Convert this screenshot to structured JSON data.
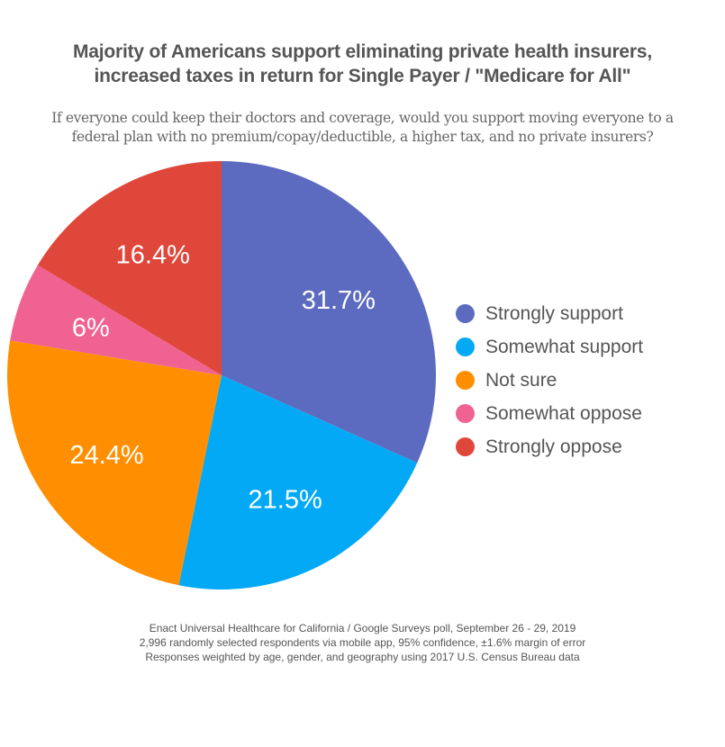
{
  "chart_data": {
    "type": "pie",
    "title": "Majority of Americans support eliminating private health insurers,\nincreased taxes in return for Single Payer / \"Medicare for All\"",
    "subtitle": "If everyone could keep their doctors and coverage, would you support moving everyone to a federal plan with no premium/copay/deductible, a higher tax, and no private insurers?",
    "categories": [
      "Strongly support",
      "Somewhat support",
      "Not sure",
      "Somewhat oppose",
      "Strongly oppose"
    ],
    "values": [
      31.7,
      21.5,
      24.4,
      6,
      16.4
    ],
    "labels": [
      "31.7%",
      "21.5%",
      "24.4%",
      "6%",
      "16.4%"
    ],
    "colors": [
      "#5c6bc0",
      "#03a9f4",
      "#ff8f00",
      "#f06292",
      "#e0473b"
    ],
    "legend_position": "right",
    "footer": [
      "Enact Universal Healthcare for California / Google Surveys poll, September 26 - 29, 2019",
      "2,996 randomly selected respondents via mobile app, 95% confidence, ±1.6% margin of error",
      "Responses weighted by age, gender, and geography using 2017 U.S. Census Bureau data"
    ]
  }
}
